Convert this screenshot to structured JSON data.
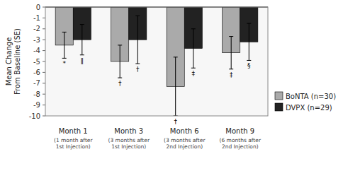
{
  "chart_data": {
    "type": "bar",
    "categories": [
      "Month 1",
      "Month 3",
      "Month 6",
      "Month 9"
    ],
    "subcategories": [
      "(1 month after\n1st Injection)",
      "(3 months after\n1st Injection)",
      "(3 months after\n2nd Injection)",
      "(6 months after\n2nd Injection)"
    ],
    "series": [
      {
        "name": "BoNTA (n=30)",
        "color": "#aaaaaa",
        "values": [
          -3.5,
          -5.0,
          -7.3,
          -4.2
        ],
        "errors": [
          1.2,
          1.5,
          2.7,
          1.5
        ],
        "annotations": [
          "*",
          "†",
          "†",
          "‡"
        ]
      },
      {
        "name": "DVPX (n=29)",
        "color": "#222222",
        "values": [
          -3.0,
          -3.0,
          -3.8,
          -3.2
        ],
        "errors": [
          1.4,
          2.2,
          1.8,
          1.7
        ],
        "annotations": [
          "‖",
          "†",
          "‡",
          "§"
        ]
      }
    ],
    "ylabel": "Mean Change\nFrom Baseline (SE)",
    "ylim": [
      -10,
      0
    ],
    "yticks": [
      0,
      -1,
      -2,
      -3,
      -4,
      -5,
      -6,
      -7,
      -8,
      -9,
      -10
    ],
    "grid": false,
    "legend": "lower right"
  }
}
